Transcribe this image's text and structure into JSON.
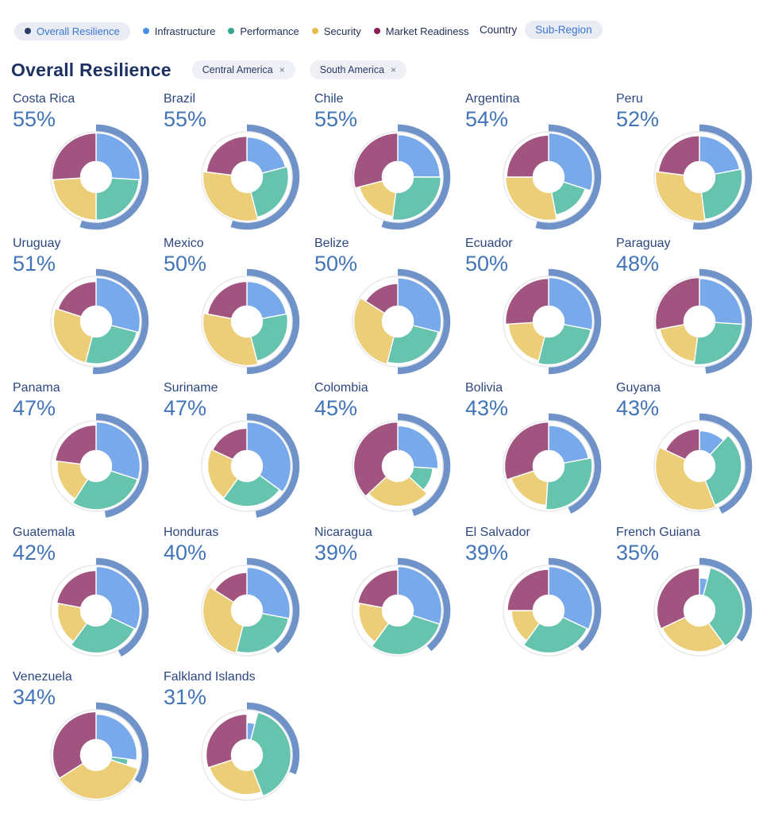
{
  "page": {
    "title": "Overall Resilience"
  },
  "legend": {
    "items": [
      {
        "label": "Overall Resilience",
        "color": "#2c3f6b",
        "selected": true
      },
      {
        "label": "Infrastructure",
        "color": "#4990e8",
        "selected": false
      },
      {
        "label": "Performance",
        "color": "#34a793",
        "selected": false
      },
      {
        "label": "Security",
        "color": "#e3bf4a",
        "selected": false
      },
      {
        "label": "Market Readiness",
        "color": "#8e1e57",
        "selected": false
      }
    ]
  },
  "view_toggle": {
    "options": [
      {
        "label": "Country",
        "selected": false
      },
      {
        "label": "Sub-Region",
        "selected": true
      }
    ]
  },
  "filters": [
    {
      "label": "Central America",
      "close": "×"
    },
    {
      "label": "South America",
      "close": "×"
    }
  ],
  "chart_data": {
    "type": "donut-grid",
    "description": "Small-multiple donut charts; outer blue arc = overall resilience % of full circle starting at 12 o'clock clockwise; inner donut segments = share of the four metrics (angle and radius scale with value).",
    "metrics": [
      "Infrastructure",
      "Performance",
      "Security",
      "Market Readiness"
    ],
    "metric_colors": [
      "#78a9ea",
      "#66c3ae",
      "#ecce78",
      "#a25480"
    ],
    "outer_arc_color": "#6f93c8",
    "track_color": "#e8e9ec",
    "countries": [
      {
        "name": "Costa Rica",
        "overall_pct": 55,
        "segments": [
          26,
          24,
          24,
          26
        ]
      },
      {
        "name": "Brazil",
        "overall_pct": 55,
        "segments": [
          21,
          25,
          31,
          23
        ]
      },
      {
        "name": "Chile",
        "overall_pct": 55,
        "segments": [
          25,
          27,
          19,
          29
        ]
      },
      {
        "name": "Argentina",
        "overall_pct": 54,
        "segments": [
          30,
          17,
          28,
          25
        ]
      },
      {
        "name": "Peru",
        "overall_pct": 52,
        "segments": [
          22,
          26,
          29,
          23
        ]
      },
      {
        "name": "Uruguay",
        "overall_pct": 51,
        "segments": [
          29,
          25,
          26,
          20
        ]
      },
      {
        "name": "Mexico",
        "overall_pct": 50,
        "segments": [
          22,
          24,
          32,
          22
        ]
      },
      {
        "name": "Belize",
        "overall_pct": 50,
        "segments": [
          29,
          25,
          30,
          16
        ]
      },
      {
        "name": "Ecuador",
        "overall_pct": 50,
        "segments": [
          28,
          26,
          20,
          26
        ]
      },
      {
        "name": "Paraguay",
        "overall_pct": 48,
        "segments": [
          26,
          26,
          20,
          28
        ]
      },
      {
        "name": "Panama",
        "overall_pct": 47,
        "segments": [
          30,
          29,
          18,
          23
        ]
      },
      {
        "name": "Suriname",
        "overall_pct": 47,
        "segments": [
          35,
          25,
          22,
          18
        ]
      },
      {
        "name": "Colombia",
        "overall_pct": 45,
        "segments": [
          26,
          11,
          26,
          37
        ]
      },
      {
        "name": "Bolivia",
        "overall_pct": 43,
        "segments": [
          22,
          29,
          19,
          30
        ]
      },
      {
        "name": "Guyana",
        "overall_pct": 43,
        "segments": [
          12,
          32,
          38,
          18
        ]
      },
      {
        "name": "Guatemala",
        "overall_pct": 42,
        "segments": [
          32,
          28,
          18,
          22
        ]
      },
      {
        "name": "Honduras",
        "overall_pct": 40,
        "segments": [
          28,
          26,
          30,
          16
        ]
      },
      {
        "name": "Nicaragua",
        "overall_pct": 39,
        "segments": [
          30,
          30,
          18,
          22
        ]
      },
      {
        "name": "El Salvador",
        "overall_pct": 39,
        "segments": [
          32,
          28,
          15,
          25
        ]
      },
      {
        "name": "French Guiana",
        "overall_pct": 35,
        "segments": [
          4,
          36,
          28,
          32
        ]
      },
      {
        "name": "Venezuela",
        "overall_pct": 34,
        "segments": [
          27,
          3,
          36,
          34
        ]
      },
      {
        "name": "Falkland Islands",
        "overall_pct": 31,
        "segments": [
          4,
          40,
          26,
          30
        ]
      }
    ],
    "text_colors": {
      "country_name": "#2c4780",
      "percentage": "#4274b8",
      "title": "#1d3263"
    }
  }
}
